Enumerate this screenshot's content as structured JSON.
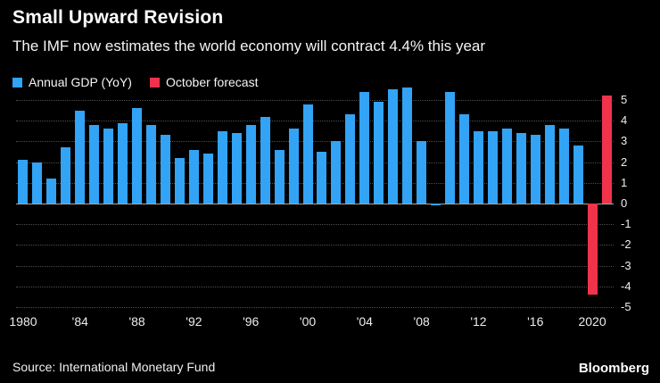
{
  "header": {
    "title": "Small Upward Revision",
    "subtitle": "The IMF now estimates the world economy will contract 4.4% this year"
  },
  "legend": [
    {
      "label": "Annual GDP (YoY)",
      "color": "#32a3f5"
    },
    {
      "label": "October forecast",
      "color": "#f0334b"
    }
  ],
  "chart_data": {
    "type": "bar",
    "title": "Small Upward Revision",
    "subtitle": "The IMF now estimates the world economy will contract 4.4% this year",
    "xlabel": "",
    "ylabel": "",
    "ylim": [
      -5,
      5
    ],
    "yticks": [
      5,
      4,
      3,
      2,
      1,
      0,
      -1,
      -2,
      -3,
      -4,
      -5
    ],
    "grid": true,
    "legend_position": "top",
    "xticks": [
      {
        "year": 1980,
        "label": "1980"
      },
      {
        "year": 1984,
        "label": "'84"
      },
      {
        "year": 1988,
        "label": "'88"
      },
      {
        "year": 1992,
        "label": "'92"
      },
      {
        "year": 1996,
        "label": "'96"
      },
      {
        "year": 2000,
        "label": "'00"
      },
      {
        "year": 2004,
        "label": "'04"
      },
      {
        "year": 2008,
        "label": "'08"
      },
      {
        "year": 2012,
        "label": "'12"
      },
      {
        "year": 2016,
        "label": "'16"
      },
      {
        "year": 2020,
        "label": "2020"
      }
    ],
    "series": [
      {
        "name": "Annual GDP (YoY)",
        "color": "#32a3f5",
        "points": [
          {
            "year": 1980,
            "value": 2.1
          },
          {
            "year": 1981,
            "value": 2.0
          },
          {
            "year": 1982,
            "value": 1.2
          },
          {
            "year": 1983,
            "value": 2.7
          },
          {
            "year": 1984,
            "value": 4.5
          },
          {
            "year": 1985,
            "value": 3.8
          },
          {
            "year": 1986,
            "value": 3.6
          },
          {
            "year": 1987,
            "value": 3.9
          },
          {
            "year": 1988,
            "value": 4.6
          },
          {
            "year": 1989,
            "value": 3.8
          },
          {
            "year": 1990,
            "value": 3.3
          },
          {
            "year": 1991,
            "value": 2.2
          },
          {
            "year": 1992,
            "value": 2.6
          },
          {
            "year": 1993,
            "value": 2.4
          },
          {
            "year": 1994,
            "value": 3.5
          },
          {
            "year": 1995,
            "value": 3.4
          },
          {
            "year": 1996,
            "value": 3.8
          },
          {
            "year": 1997,
            "value": 4.2
          },
          {
            "year": 1998,
            "value": 2.6
          },
          {
            "year": 1999,
            "value": 3.6
          },
          {
            "year": 2000,
            "value": 4.8
          },
          {
            "year": 2001,
            "value": 2.5
          },
          {
            "year": 2002,
            "value": 3.0
          },
          {
            "year": 2003,
            "value": 4.3
          },
          {
            "year": 2004,
            "value": 5.4
          },
          {
            "year": 2005,
            "value": 4.9
          },
          {
            "year": 2006,
            "value": 5.5
          },
          {
            "year": 2007,
            "value": 5.6
          },
          {
            "year": 2008,
            "value": 3.0
          },
          {
            "year": 2009,
            "value": -0.1
          },
          {
            "year": 2010,
            "value": 5.4
          },
          {
            "year": 2011,
            "value": 4.3
          },
          {
            "year": 2012,
            "value": 3.5
          },
          {
            "year": 2013,
            "value": 3.5
          },
          {
            "year": 2014,
            "value": 3.6
          },
          {
            "year": 2015,
            "value": 3.4
          },
          {
            "year": 2016,
            "value": 3.3
          },
          {
            "year": 2017,
            "value": 3.8
          },
          {
            "year": 2018,
            "value": 3.6
          },
          {
            "year": 2019,
            "value": 2.8
          }
        ]
      },
      {
        "name": "October forecast",
        "color": "#f0334b",
        "points": [
          {
            "year": 2020,
            "value": -4.4
          },
          {
            "year": 2021,
            "value": 5.2
          }
        ]
      }
    ]
  },
  "footer": {
    "source": "Source: International Monetary Fund",
    "brand": "Bloomberg"
  }
}
